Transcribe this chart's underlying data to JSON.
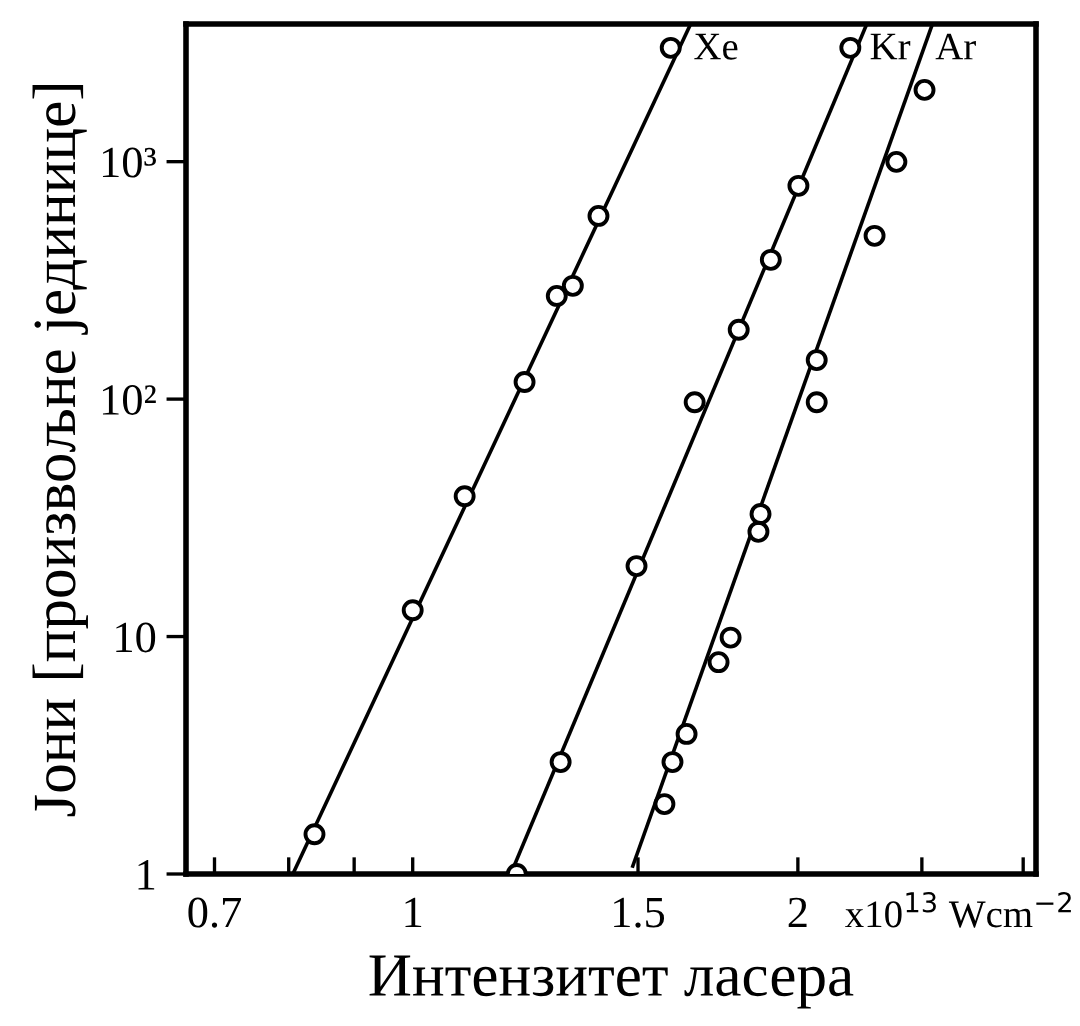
{
  "chart_data": {
    "type": "scatter",
    "xlabel": "Интензитет ласера",
    "ylabel": "Јони [произвољне јединице]",
    "log": "xy",
    "xlim": [
      0.665,
      3.07
    ],
    "ylim": [
      1,
      3800
    ],
    "xticks": [
      0.7,
      {
        "value": 0.8,
        "label": null
      },
      {
        "value": 0.9,
        "label": null
      },
      1,
      1.5,
      2,
      {
        "value": 2.5,
        "label": null
      },
      {
        "value": 3,
        "label": null
      }
    ],
    "yticks": [
      1,
      10,
      {
        "value": 100,
        "label": "10²"
      },
      {
        "value": 1000,
        "label": "10³"
      }
    ],
    "grid": false,
    "series": [
      {
        "marker": "circle",
        "color": "#000000",
        "x": [
          0.838,
          1.0,
          1.098,
          1.223,
          1.296,
          1.334,
          1.397,
          1.591
        ],
        "values": [
          1.47,
          12.9,
          39,
          118,
          272,
          300,
          591,
          3015
        ]
      },
      {
        "marker": "circle",
        "color": "#000000",
        "x": [
          1.206,
          1.305,
          1.496,
          1.661,
          1.798,
          1.905,
          2.002,
          2.198
        ],
        "values": [
          1,
          2.96,
          19.8,
          97,
          196,
          386,
          791,
          3015
        ]
      },
      {
        "marker": "circle",
        "color": "#000000",
        "x": [
          1.573,
          1.596,
          1.637,
          1.734,
          1.772,
          1.863,
          1.87,
          2.069,
          2.069,
          2.296,
          2.388,
          2.512
        ],
        "values": [
          1.97,
          2.96,
          3.89,
          7.8,
          9.9,
          27.6,
          32.8,
          97,
          146,
          487,
          998,
          2006
        ]
      },
      {
        "type": "line",
        "name": "Xe",
        "color": "#000000",
        "x": [
          0.806,
          1.649
        ],
        "values": [
          1,
          3800
        ]
      },
      {
        "type": "line",
        "name": "Kr",
        "color": "#000000",
        "x": [
          1.193,
          2.264
        ],
        "values": [
          1,
          3800
        ]
      },
      {
        "type": "line",
        "name": "Ar",
        "color": "#000000",
        "x": [
          1.486,
          2.548
        ],
        "values": [
          1.08,
          3800
        ]
      }
    ],
    "annotations": [
      "x10$^{13}$ Wcm$^{−2}$"
    ]
  }
}
